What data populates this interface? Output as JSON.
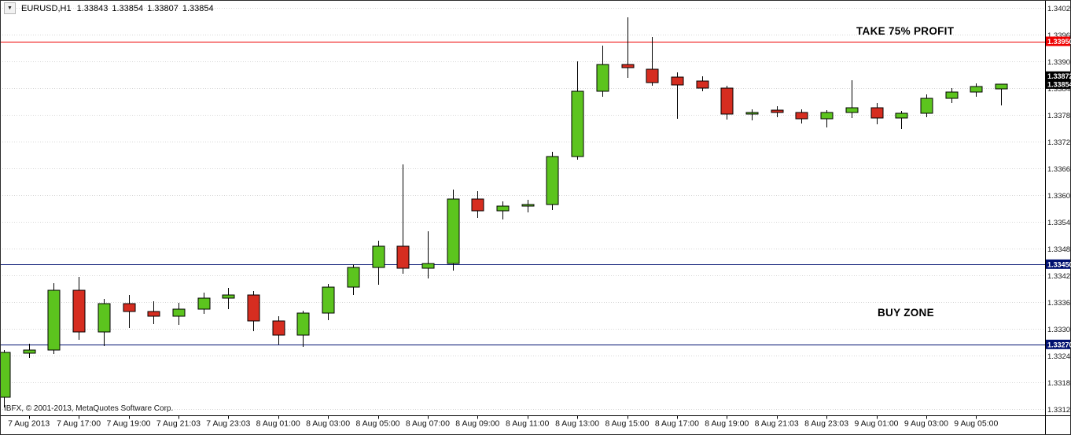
{
  "header": {
    "symbol_period": "EURUSD,H1",
    "open": "1.33843",
    "high": "1.33854",
    "low": "1.33807",
    "close": "1.33854"
  },
  "annotations": {
    "take_profit_label": "TAKE 75% PROFIT",
    "buy_zone_label": "BUY ZONE"
  },
  "footer": {
    "copyright": "IBFX, © 2001-2013, MetaQuotes Software Corp."
  },
  "chart_data": {
    "type": "candlestick",
    "symbol": "EURUSD",
    "timeframe": "H1",
    "colors": {
      "bull": "#5cc41e",
      "bear": "#d62d20",
      "grid": "#d6d6d6",
      "take_profit": "#ee0000",
      "zone": "#001070",
      "price_tag": "#000000"
    },
    "y_axis": {
      "min": 1.33125,
      "max": 1.34025,
      "step": 0.0006,
      "ticks": [
        "1.34025",
        "1.33965",
        "1.33905",
        "1.33845",
        "1.33785",
        "1.33725",
        "1.33665",
        "1.33605",
        "1.33545",
        "1.33485",
        "1.33425",
        "1.33365",
        "1.33305",
        "1.33245",
        "1.33185",
        "1.33125"
      ]
    },
    "hlines": [
      {
        "price": 1.3395,
        "label": "1.33950",
        "color": "#ee0000",
        "line": true,
        "name": "take-profit-line"
      },
      {
        "price": 1.33872,
        "label": "1.33872",
        "color": "#000000",
        "line": false,
        "name": "ask-price"
      },
      {
        "price": 1.33854,
        "label": "1.33854",
        "color": "#000000",
        "line": false,
        "name": "bid-price"
      },
      {
        "price": 1.3345,
        "label": "1.33450",
        "color": "#001070",
        "line": true,
        "name": "buy-zone-top"
      },
      {
        "price": 1.3327,
        "label": "1.33270",
        "color": "#001070",
        "line": true,
        "name": "buy-zone-bottom"
      }
    ],
    "x_labels": [
      {
        "label": "7 Aug 2013",
        "i": 1
      },
      {
        "label": "7 Aug 17:00",
        "i": 3
      },
      {
        "label": "7 Aug 19:00",
        "i": 5
      },
      {
        "label": "7 Aug 21:03",
        "i": 7
      },
      {
        "label": "7 Aug 23:03",
        "i": 9
      },
      {
        "label": "8 Aug 01:00",
        "i": 11
      },
      {
        "label": "8 Aug 03:00",
        "i": 13
      },
      {
        "label": "8 Aug 05:00",
        "i": 15
      },
      {
        "label": "8 Aug 07:00",
        "i": 17
      },
      {
        "label": "8 Aug 09:00",
        "i": 19
      },
      {
        "label": "8 Aug 11:00",
        "i": 21
      },
      {
        "label": "8 Aug 13:00",
        "i": 23
      },
      {
        "label": "8 Aug 15:00",
        "i": 25
      },
      {
        "label": "8 Aug 17:00",
        "i": 27
      },
      {
        "label": "8 Aug 19:00",
        "i": 29
      },
      {
        "label": "8 Aug 21:03",
        "i": 31
      },
      {
        "label": "8 Aug 23:03",
        "i": 33
      },
      {
        "label": "9 Aug 01:00",
        "i": 35
      },
      {
        "label": "9 Aug 03:00",
        "i": 37
      },
      {
        "label": "9 Aug 05:00",
        "i": 39
      }
    ],
    "candles": [
      {
        "t": "7 Aug 14:00",
        "o": 1.33152,
        "h": 1.33258,
        "l": 1.33128,
        "c": 1.33252
      },
      {
        "t": "7 Aug 15:00",
        "o": 1.3325,
        "h": 1.33272,
        "l": 1.3324,
        "c": 1.33258
      },
      {
        "t": "7 Aug 16:00",
        "o": 1.33258,
        "h": 1.33408,
        "l": 1.33248,
        "c": 1.33392
      },
      {
        "t": "7 Aug 17:00",
        "o": 1.33392,
        "h": 1.33422,
        "l": 1.3328,
        "c": 1.33298
      },
      {
        "t": "7 Aug 18:00",
        "o": 1.33298,
        "h": 1.33372,
        "l": 1.33266,
        "c": 1.33362
      },
      {
        "t": "7 Aug 19:00",
        "o": 1.33362,
        "h": 1.3338,
        "l": 1.33306,
        "c": 1.33344
      },
      {
        "t": "7 Aug 20:00",
        "o": 1.33344,
        "h": 1.33366,
        "l": 1.33316,
        "c": 1.33334
      },
      {
        "t": "7 Aug 21:03",
        "o": 1.33334,
        "h": 1.33364,
        "l": 1.33314,
        "c": 1.3335
      },
      {
        "t": "7 Aug 22:00",
        "o": 1.3335,
        "h": 1.33386,
        "l": 1.33338,
        "c": 1.33374
      },
      {
        "t": "7 Aug 23:03",
        "o": 1.33374,
        "h": 1.33396,
        "l": 1.3335,
        "c": 1.3338
      },
      {
        "t": "8 Aug 00:00",
        "o": 1.3338,
        "h": 1.3339,
        "l": 1.333,
        "c": 1.33322
      },
      {
        "t": "8 Aug 01:00",
        "o": 1.33322,
        "h": 1.33334,
        "l": 1.3327,
        "c": 1.3329
      },
      {
        "t": "8 Aug 02:00",
        "o": 1.3329,
        "h": 1.33346,
        "l": 1.33264,
        "c": 1.3334
      },
      {
        "t": "8 Aug 03:00",
        "o": 1.3334,
        "h": 1.33406,
        "l": 1.33324,
        "c": 1.33398
      },
      {
        "t": "8 Aug 04:00",
        "o": 1.33398,
        "h": 1.3345,
        "l": 1.3338,
        "c": 1.33443
      },
      {
        "t": "8 Aug 05:00",
        "o": 1.33443,
        "h": 1.33502,
        "l": 1.33404,
        "c": 1.3349
      },
      {
        "t": "8 Aug 06:00",
        "o": 1.3349,
        "h": 1.33674,
        "l": 1.33428,
        "c": 1.3344
      },
      {
        "t": "8 Aug 07:00",
        "o": 1.3344,
        "h": 1.33524,
        "l": 1.33418,
        "c": 1.33452
      },
      {
        "t": "8 Aug 08:00",
        "o": 1.33452,
        "h": 1.33618,
        "l": 1.33436,
        "c": 1.33596
      },
      {
        "t": "8 Aug 09:00",
        "o": 1.33596,
        "h": 1.33614,
        "l": 1.33554,
        "c": 1.3357
      },
      {
        "t": "8 Aug 10:00",
        "o": 1.3357,
        "h": 1.3359,
        "l": 1.3355,
        "c": 1.3358
      },
      {
        "t": "8 Aug 11:00",
        "o": 1.3358,
        "h": 1.33594,
        "l": 1.33566,
        "c": 1.33584
      },
      {
        "t": "8 Aug 12:00",
        "o": 1.33584,
        "h": 1.33702,
        "l": 1.33572,
        "c": 1.33692
      },
      {
        "t": "8 Aug 13:00",
        "o": 1.33692,
        "h": 1.33905,
        "l": 1.33684,
        "c": 1.33838
      },
      {
        "t": "8 Aug 14:00",
        "o": 1.33838,
        "h": 1.3394,
        "l": 1.33826,
        "c": 1.33898
      },
      {
        "t": "8 Aug 15:00",
        "o": 1.33898,
        "h": 1.34003,
        "l": 1.33868,
        "c": 1.3389
      },
      {
        "t": "8 Aug 16:00",
        "o": 1.33887,
        "h": 1.3396,
        "l": 1.3385,
        "c": 1.33857
      },
      {
        "t": "8 Aug 17:00",
        "o": 1.3387,
        "h": 1.3388,
        "l": 1.33776,
        "c": 1.33852
      },
      {
        "t": "8 Aug 18:00",
        "o": 1.3386,
        "h": 1.33872,
        "l": 1.33838,
        "c": 1.33845
      },
      {
        "t": "8 Aug 19:00",
        "o": 1.33845,
        "h": 1.3385,
        "l": 1.33774,
        "c": 1.33786
      },
      {
        "t": "8 Aug 20:00",
        "o": 1.33786,
        "h": 1.33798,
        "l": 1.33772,
        "c": 1.3379
      },
      {
        "t": "8 Aug 21:03",
        "o": 1.33796,
        "h": 1.33804,
        "l": 1.3378,
        "c": 1.3379
      },
      {
        "t": "8 Aug 22:00",
        "o": 1.3379,
        "h": 1.33798,
        "l": 1.33766,
        "c": 1.33776
      },
      {
        "t": "8 Aug 23:03",
        "o": 1.33776,
        "h": 1.33795,
        "l": 1.33756,
        "c": 1.3379
      },
      {
        "t": "9 Aug 00:00",
        "o": 1.3379,
        "h": 1.33862,
        "l": 1.33778,
        "c": 1.338
      },
      {
        "t": "9 Aug 01:00",
        "o": 1.338,
        "h": 1.33812,
        "l": 1.33764,
        "c": 1.33778
      },
      {
        "t": "9 Aug 02:00",
        "o": 1.33778,
        "h": 1.33794,
        "l": 1.33754,
        "c": 1.33788
      },
      {
        "t": "9 Aug 03:00",
        "o": 1.33788,
        "h": 1.3383,
        "l": 1.3378,
        "c": 1.33822
      },
      {
        "t": "9 Aug 04:00",
        "o": 1.33822,
        "h": 1.33845,
        "l": 1.33812,
        "c": 1.33836
      },
      {
        "t": "9 Aug 05:00",
        "o": 1.33836,
        "h": 1.33856,
        "l": 1.33826,
        "c": 1.33848
      },
      {
        "t": "9 Aug 06:00",
        "o": 1.33843,
        "h": 1.33854,
        "l": 1.33807,
        "c": 1.33854
      }
    ]
  }
}
